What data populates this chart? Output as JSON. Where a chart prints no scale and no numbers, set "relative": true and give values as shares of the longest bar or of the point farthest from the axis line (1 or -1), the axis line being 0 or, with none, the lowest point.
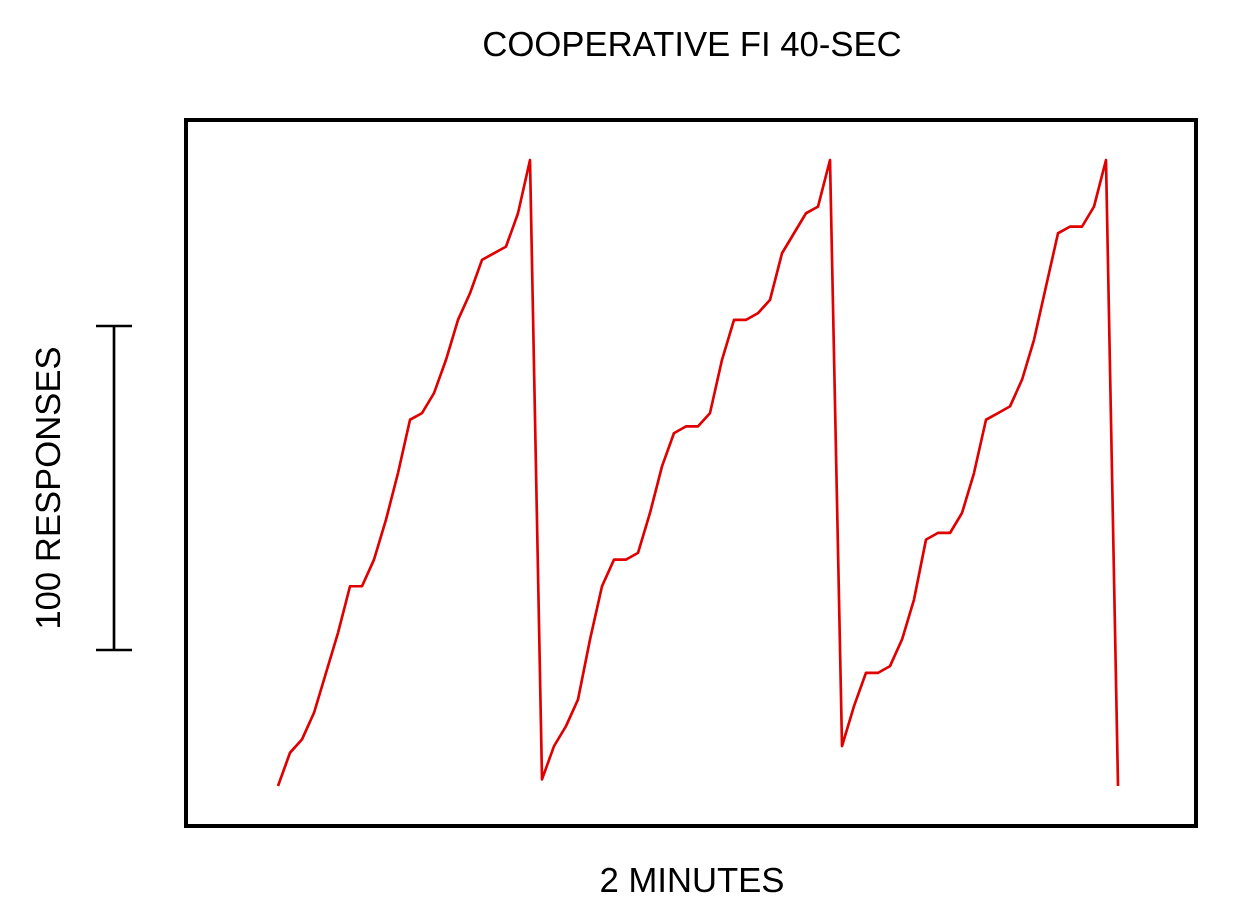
{
  "chart_data": {
    "type": "line",
    "title": "COOPERATIVE FI 40-SEC",
    "xlabel": "2 MINUTES",
    "annotations": [
      "100 RESPONSES"
    ],
    "relative": true,
    "categories": [
      null,
      null,
      null,
      null,
      null,
      null,
      null,
      null,
      null,
      null,
      null,
      null,
      null,
      null,
      null,
      null,
      null,
      null,
      null,
      null,
      null,
      null,
      null,
      null,
      null,
      null,
      null,
      null,
      null,
      null,
      null,
      null,
      null,
      null,
      null,
      null,
      null,
      null,
      null,
      null,
      null,
      null,
      null,
      null,
      null,
      null,
      null,
      null,
      null,
      null,
      null,
      null,
      null,
      null,
      null,
      null,
      null,
      null,
      null,
      null,
      null,
      null,
      null,
      null,
      null,
      null,
      null,
      null,
      null,
      null,
      null
    ],
    "series": [
      {
        "color": "#e00000",
        "values": [
          0.06,
          0.11,
          0.13,
          0.17,
          0.23,
          0.29,
          0.36,
          0.36,
          0.4,
          0.46,
          0.53,
          0.61,
          0.62,
          0.65,
          0.7,
          0.76,
          0.8,
          0.85,
          0.86,
          0.87,
          0.92,
          1.0,
          0.07,
          0.12,
          0.15,
          0.19,
          0.28,
          0.36,
          0.4,
          0.4,
          0.41,
          0.47,
          0.54,
          0.59,
          0.6,
          0.6,
          0.62,
          0.7,
          0.76,
          0.76,
          0.77,
          0.79,
          0.86,
          0.89,
          0.92,
          0.93,
          1.0,
          0.12,
          0.18,
          0.23,
          0.23,
          0.24,
          0.28,
          0.34,
          0.43,
          0.44,
          0.44,
          0.47,
          0.53,
          0.61,
          0.62,
          0.63,
          0.67,
          0.73,
          0.81,
          0.89,
          0.9,
          0.9,
          0.93,
          1.0,
          0.06
        ]
      }
    ]
  }
}
